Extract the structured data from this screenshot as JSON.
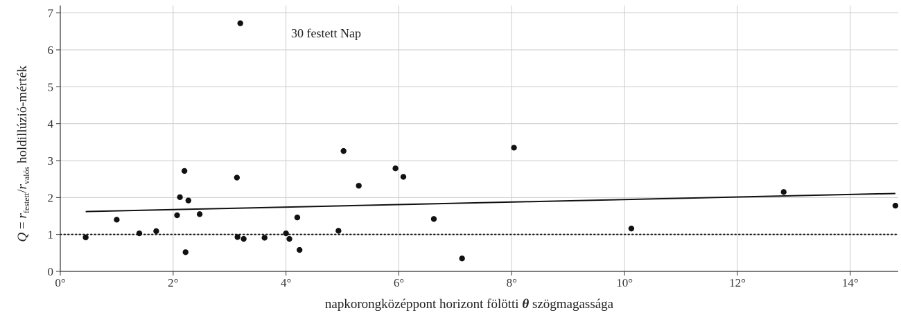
{
  "chart_data": {
    "type": "scatter",
    "annotation": "30 festett Nap",
    "xlabel": {
      "prefix": "napkorongközéppont horizont fölötti ",
      "symbol": "θ",
      "suffix": " szögmagassága"
    },
    "ylabel": {
      "q": "Q",
      "eq": " = ",
      "r1": "r",
      "sub1": "festett",
      "slash": "/",
      "r2": "r",
      "sub2": "valós",
      "rest": " holdillúzió-mérték"
    },
    "xlim": [
      0,
      14.85
    ],
    "ylim": [
      0,
      7.2
    ],
    "x_ticks": [
      0,
      2,
      4,
      6,
      8,
      10,
      12,
      14
    ],
    "x_tick_labels": [
      "0°",
      "2°",
      "4°",
      "6°",
      "8°",
      "10°",
      "12°",
      "14°"
    ],
    "y_ticks": [
      0,
      1,
      2,
      3,
      4,
      5,
      6,
      7
    ],
    "y_tick_labels": [
      "0",
      "1",
      "2",
      "3",
      "4",
      "5",
      "6",
      "7"
    ],
    "grid": true,
    "reference_line_y": 1,
    "trend_line": {
      "x": [
        0.45,
        14.8
      ],
      "y": [
        1.62,
        2.11
      ]
    },
    "points": [
      {
        "x": 0.45,
        "y": 0.92
      },
      {
        "x": 1.0,
        "y": 1.4
      },
      {
        "x": 1.4,
        "y": 1.03
      },
      {
        "x": 1.7,
        "y": 1.09
      },
      {
        "x": 2.07,
        "y": 1.52
      },
      {
        "x": 2.12,
        "y": 2.01
      },
      {
        "x": 2.2,
        "y": 2.72
      },
      {
        "x": 2.22,
        "y": 0.52
      },
      {
        "x": 2.27,
        "y": 1.92
      },
      {
        "x": 2.47,
        "y": 1.55
      },
      {
        "x": 3.13,
        "y": 2.54
      },
      {
        "x": 3.14,
        "y": 0.93
      },
      {
        "x": 3.19,
        "y": 6.72
      },
      {
        "x": 3.25,
        "y": 0.88
      },
      {
        "x": 3.62,
        "y": 0.91
      },
      {
        "x": 4.0,
        "y": 1.03
      },
      {
        "x": 4.06,
        "y": 0.88
      },
      {
        "x": 4.2,
        "y": 1.46
      },
      {
        "x": 4.24,
        "y": 0.58
      },
      {
        "x": 4.93,
        "y": 1.1
      },
      {
        "x": 5.02,
        "y": 3.26
      },
      {
        "x": 5.29,
        "y": 2.32
      },
      {
        "x": 5.94,
        "y": 2.79
      },
      {
        "x": 6.08,
        "y": 2.56
      },
      {
        "x": 6.62,
        "y": 1.42
      },
      {
        "x": 7.12,
        "y": 0.35
      },
      {
        "x": 8.04,
        "y": 3.35
      },
      {
        "x": 10.12,
        "y": 1.16
      },
      {
        "x": 12.82,
        "y": 2.15
      },
      {
        "x": 14.8,
        "y": 1.78
      }
    ]
  }
}
